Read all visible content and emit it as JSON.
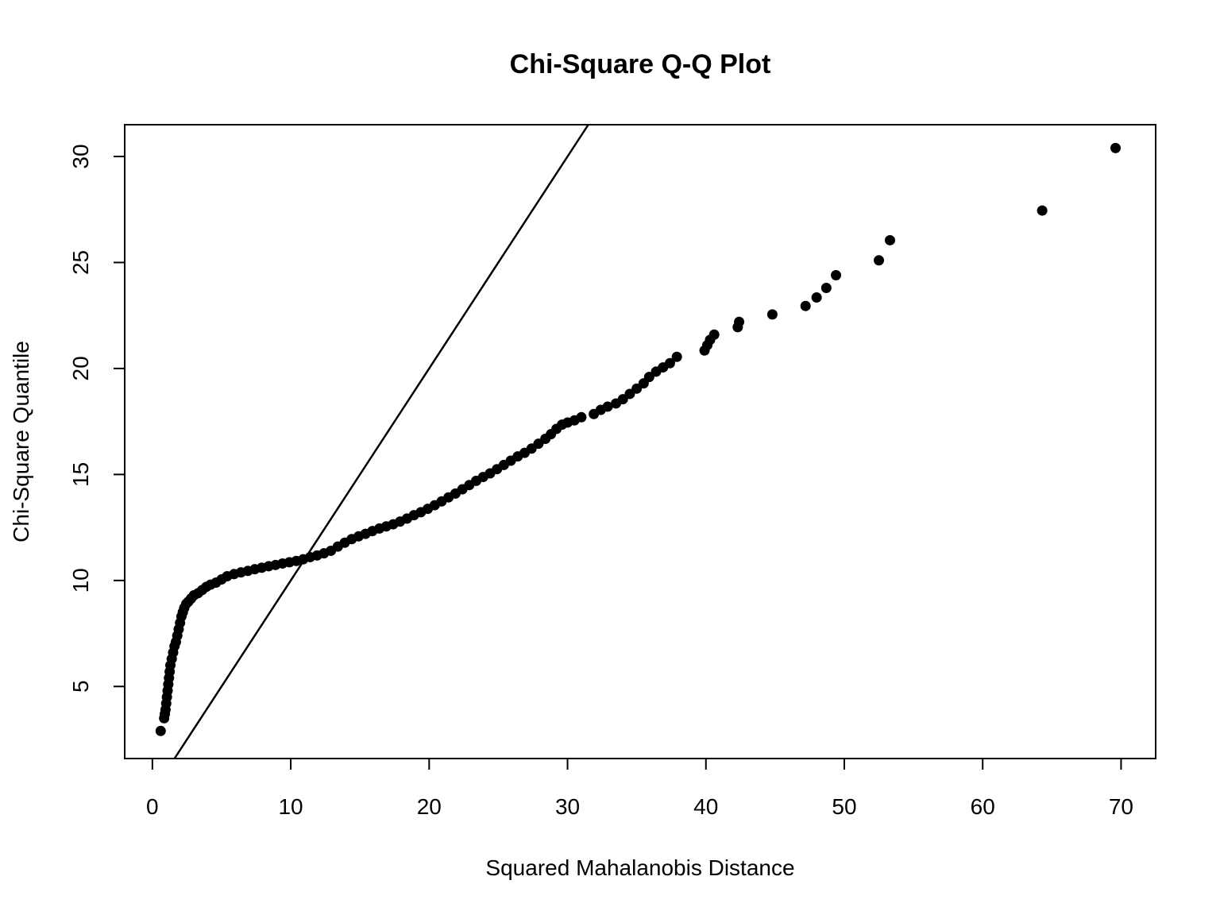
{
  "chart_data": {
    "type": "scatter",
    "title": "Chi-Square Q-Q Plot",
    "xlabel": "Squared Mahalanobis Distance",
    "ylabel": "Chi-Square Quantile",
    "xlim": [
      -2,
      72.5
    ],
    "ylim": [
      1.6,
      31.5
    ],
    "x_ticks": [
      0,
      10,
      20,
      30,
      40,
      50,
      60,
      70
    ],
    "y_ticks": [
      5,
      10,
      15,
      20,
      25,
      30
    ],
    "grid": false,
    "reference_line": {
      "intercept": 0,
      "slope": 1,
      "color": "#000000"
    },
    "point_color": "#000000",
    "points": [
      [
        0.6,
        2.9
      ],
      [
        0.85,
        3.5
      ],
      [
        0.9,
        3.7
      ],
      [
        0.95,
        3.9
      ],
      [
        1.0,
        4.2
      ],
      [
        1.05,
        4.5
      ],
      [
        1.1,
        4.8
      ],
      [
        1.15,
        5.1
      ],
      [
        1.2,
        5.4
      ],
      [
        1.25,
        5.7
      ],
      [
        1.3,
        6.0
      ],
      [
        1.4,
        6.3
      ],
      [
        1.5,
        6.6
      ],
      [
        1.6,
        6.9
      ],
      [
        1.7,
        7.1
      ],
      [
        1.8,
        7.4
      ],
      [
        1.9,
        7.7
      ],
      [
        2.0,
        8.0
      ],
      [
        2.1,
        8.3
      ],
      [
        2.2,
        8.5
      ],
      [
        2.3,
        8.7
      ],
      [
        2.45,
        8.9
      ],
      [
        2.6,
        9.0
      ],
      [
        2.8,
        9.15
      ],
      [
        3.0,
        9.3
      ],
      [
        3.3,
        9.4
      ],
      [
        3.6,
        9.55
      ],
      [
        3.9,
        9.7
      ],
      [
        4.2,
        9.8
      ],
      [
        4.6,
        9.9
      ],
      [
        5.0,
        10.05
      ],
      [
        5.4,
        10.2
      ],
      [
        5.9,
        10.3
      ],
      [
        6.4,
        10.38
      ],
      [
        6.9,
        10.45
      ],
      [
        7.4,
        10.53
      ],
      [
        7.9,
        10.6
      ],
      [
        8.4,
        10.67
      ],
      [
        8.9,
        10.73
      ],
      [
        9.4,
        10.8
      ],
      [
        9.9,
        10.86
      ],
      [
        10.4,
        10.92
      ],
      [
        10.9,
        11.0
      ],
      [
        11.4,
        11.1
      ],
      [
        11.9,
        11.18
      ],
      [
        12.4,
        11.28
      ],
      [
        12.9,
        11.4
      ],
      [
        13.4,
        11.6
      ],
      [
        13.9,
        11.78
      ],
      [
        14.4,
        11.95
      ],
      [
        14.9,
        12.08
      ],
      [
        15.4,
        12.2
      ],
      [
        15.9,
        12.33
      ],
      [
        16.4,
        12.45
      ],
      [
        16.9,
        12.55
      ],
      [
        17.4,
        12.65
      ],
      [
        17.9,
        12.78
      ],
      [
        18.4,
        12.92
      ],
      [
        18.9,
        13.08
      ],
      [
        19.4,
        13.22
      ],
      [
        19.9,
        13.38
      ],
      [
        20.4,
        13.55
      ],
      [
        20.9,
        13.73
      ],
      [
        21.4,
        13.92
      ],
      [
        21.9,
        14.1
      ],
      [
        22.4,
        14.3
      ],
      [
        22.9,
        14.5
      ],
      [
        23.4,
        14.7
      ],
      [
        23.9,
        14.88
      ],
      [
        24.4,
        15.05
      ],
      [
        24.9,
        15.25
      ],
      [
        25.4,
        15.45
      ],
      [
        25.9,
        15.65
      ],
      [
        26.4,
        15.85
      ],
      [
        26.9,
        16.02
      ],
      [
        27.4,
        16.22
      ],
      [
        27.9,
        16.45
      ],
      [
        28.4,
        16.68
      ],
      [
        28.8,
        16.9
      ],
      [
        29.2,
        17.15
      ],
      [
        29.6,
        17.35
      ],
      [
        30.0,
        17.45
      ],
      [
        30.5,
        17.55
      ],
      [
        31.0,
        17.7
      ],
      [
        31.9,
        17.85
      ],
      [
        32.4,
        18.05
      ],
      [
        32.9,
        18.2
      ],
      [
        33.5,
        18.35
      ],
      [
        34.0,
        18.55
      ],
      [
        34.5,
        18.8
      ],
      [
        35.0,
        19.05
      ],
      [
        35.5,
        19.3
      ],
      [
        35.9,
        19.6
      ],
      [
        36.4,
        19.85
      ],
      [
        36.9,
        20.05
      ],
      [
        37.4,
        20.25
      ],
      [
        37.9,
        20.55
      ],
      [
        39.9,
        20.85
      ],
      [
        40.1,
        21.1
      ],
      [
        40.3,
        21.35
      ],
      [
        40.6,
        21.6
      ],
      [
        42.3,
        21.95
      ],
      [
        42.4,
        22.2
      ],
      [
        44.8,
        22.55
      ],
      [
        47.2,
        22.95
      ],
      [
        48.0,
        23.35
      ],
      [
        48.7,
        23.8
      ],
      [
        49.4,
        24.4
      ],
      [
        52.5,
        25.1
      ],
      [
        53.3,
        26.05
      ],
      [
        64.3,
        27.45
      ],
      [
        69.6,
        30.4
      ]
    ]
  }
}
